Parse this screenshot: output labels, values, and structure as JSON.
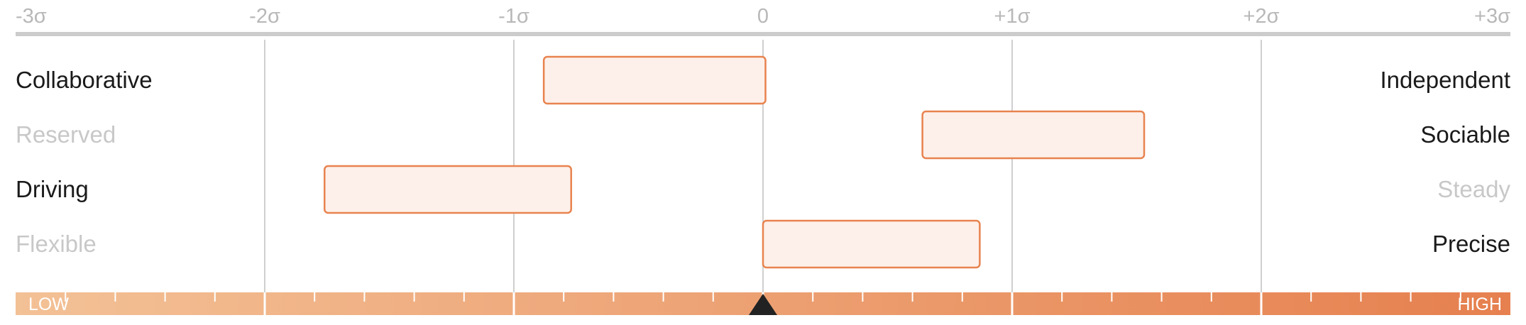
{
  "chart_data": {
    "type": "range-bar",
    "x_ticks": [
      {
        "value": -3,
        "label": "-3σ"
      },
      {
        "value": -2,
        "label": "-2σ"
      },
      {
        "value": -1,
        "label": "-1σ"
      },
      {
        "value": 0,
        "label": "0"
      },
      {
        "value": 1,
        "label": "+1σ"
      },
      {
        "value": 2,
        "label": "+2σ"
      },
      {
        "value": 3,
        "label": "+3σ"
      }
    ],
    "xlim": [
      -3,
      3
    ],
    "grid": true,
    "rows": [
      {
        "left_label": "Collaborative",
        "right_label": "Independent",
        "start": -0.88,
        "end": 0.01,
        "left_emphasized": true,
        "right_emphasized": true
      },
      {
        "left_label": "Reserved",
        "right_label": "Sociable",
        "start": 0.64,
        "end": 1.53,
        "left_emphasized": false,
        "right_emphasized": true
      },
      {
        "left_label": "Driving",
        "right_label": "Steady",
        "start": -1.76,
        "end": -0.77,
        "left_emphasized": true,
        "right_emphasized": false
      },
      {
        "left_label": "Flexible",
        "right_label": "Precise",
        "start": 0.0,
        "end": 0.87,
        "left_emphasized": false,
        "right_emphasized": true
      }
    ],
    "scale_bar": {
      "low_label": "LOW",
      "high_label": "HIGH",
      "marker_value": 0,
      "color_start": "#f3c196",
      "color_end": "#e6804f"
    },
    "colors": {
      "bar_fill": "#fdf0ea",
      "bar_stroke": "#e8834f",
      "grid": "#cfcfcf",
      "axis_line": "#cccccc",
      "label_emphasized": "#1a1a1a",
      "label_muted": "#c8c8c8",
      "tick_label": "#b8b8b8",
      "marker": "#222222"
    }
  }
}
